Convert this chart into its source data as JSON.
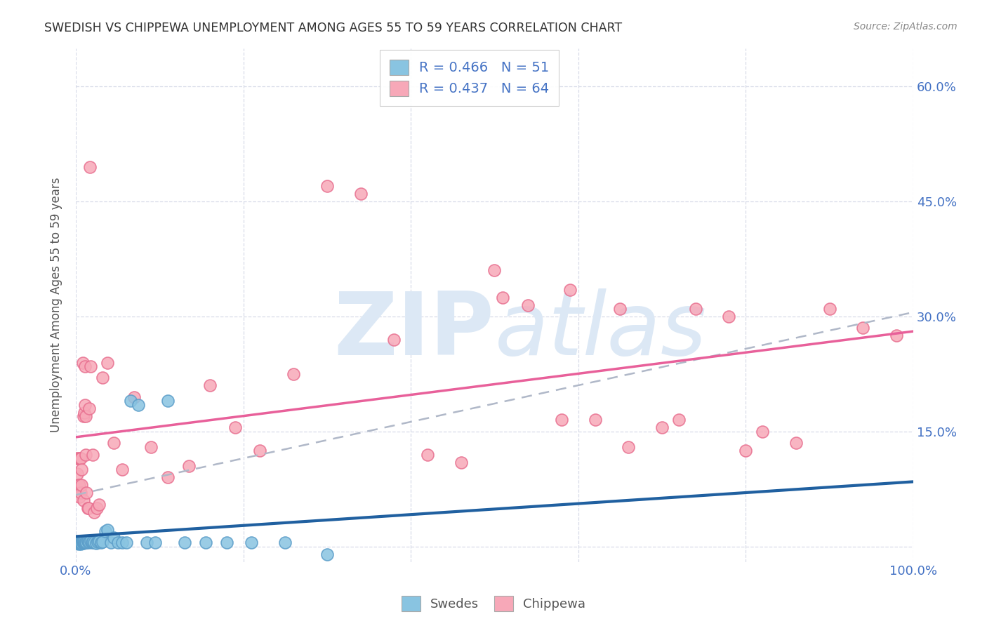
{
  "title": "SWEDISH VS CHIPPEWA UNEMPLOYMENT AMONG AGES 55 TO 59 YEARS CORRELATION CHART",
  "source": "Source: ZipAtlas.com",
  "ylabel": "Unemployment Among Ages 55 to 59 years",
  "xlim": [
    0.0,
    1.0
  ],
  "ylim": [
    -0.02,
    0.65
  ],
  "yticks": [
    0.0,
    0.15,
    0.3,
    0.45,
    0.6
  ],
  "yticklabels_right": [
    "",
    "15.0%",
    "30.0%",
    "45.0%",
    "60.0%"
  ],
  "xtick_positions": [
    0.0,
    0.2,
    0.4,
    0.6,
    0.8,
    1.0
  ],
  "xticklabels": [
    "0.0%",
    "",
    "",
    "",
    "",
    "100.0%"
  ],
  "swedes_color": "#89c4e1",
  "swedes_edge": "#5b9dc9",
  "chippewa_color": "#f7a8b8",
  "chippewa_edge": "#e87090",
  "swedes_line_color": "#2060a0",
  "chippewa_line_color": "#e8609a",
  "dashed_line_color": "#b0b8c8",
  "swedes_R": 0.466,
  "swedes_N": 51,
  "chippewa_R": 0.437,
  "chippewa_N": 64,
  "swedes_x": [
    0.001,
    0.002,
    0.003,
    0.003,
    0.004,
    0.004,
    0.005,
    0.005,
    0.006,
    0.006,
    0.007,
    0.007,
    0.008,
    0.008,
    0.009,
    0.009,
    0.01,
    0.01,
    0.011,
    0.012,
    0.013,
    0.014,
    0.015,
    0.016,
    0.018,
    0.019,
    0.02,
    0.022,
    0.024,
    0.026,
    0.028,
    0.03,
    0.032,
    0.035,
    0.038,
    0.042,
    0.045,
    0.05,
    0.055,
    0.06,
    0.065,
    0.075,
    0.085,
    0.095,
    0.11,
    0.13,
    0.155,
    0.18,
    0.21,
    0.25,
    0.3
  ],
  "swedes_y": [
    0.005,
    0.004,
    0.006,
    0.003,
    0.005,
    0.007,
    0.004,
    0.006,
    0.003,
    0.005,
    0.006,
    0.004,
    0.005,
    0.007,
    0.004,
    0.006,
    0.005,
    0.007,
    0.005,
    0.006,
    0.005,
    0.007,
    0.005,
    0.006,
    0.007,
    0.005,
    0.006,
    0.005,
    0.004,
    0.006,
    0.007,
    0.005,
    0.006,
    0.02,
    0.022,
    0.005,
    0.012,
    0.005,
    0.005,
    0.005,
    0.19,
    0.185,
    0.005,
    0.005,
    0.19,
    0.005,
    0.005,
    0.005,
    0.005,
    0.005,
    -0.01
  ],
  "chippewa_x": [
    0.001,
    0.002,
    0.003,
    0.003,
    0.004,
    0.004,
    0.005,
    0.006,
    0.006,
    0.007,
    0.007,
    0.008,
    0.009,
    0.009,
    0.01,
    0.011,
    0.011,
    0.012,
    0.012,
    0.013,
    0.014,
    0.015,
    0.016,
    0.017,
    0.018,
    0.02,
    0.022,
    0.025,
    0.028,
    0.032,
    0.038,
    0.045,
    0.055,
    0.07,
    0.09,
    0.11,
    0.135,
    0.16,
    0.19,
    0.22,
    0.26,
    0.3,
    0.34,
    0.38,
    0.42,
    0.46,
    0.5,
    0.54,
    0.58,
    0.62,
    0.66,
    0.7,
    0.74,
    0.78,
    0.82,
    0.86,
    0.9,
    0.94,
    0.98,
    0.59,
    0.65,
    0.51,
    0.72,
    0.8
  ],
  "chippewa_y": [
    0.115,
    0.095,
    0.115,
    0.08,
    0.065,
    0.08,
    0.115,
    0.07,
    0.115,
    0.1,
    0.08,
    0.24,
    0.17,
    0.06,
    0.175,
    0.235,
    0.185,
    0.12,
    0.17,
    0.07,
    0.05,
    0.05,
    0.18,
    0.495,
    0.235,
    0.12,
    0.045,
    0.05,
    0.055,
    0.22,
    0.24,
    0.135,
    0.1,
    0.195,
    0.13,
    0.09,
    0.105,
    0.21,
    0.155,
    0.125,
    0.225,
    0.47,
    0.46,
    0.27,
    0.12,
    0.11,
    0.36,
    0.315,
    0.165,
    0.165,
    0.13,
    0.155,
    0.31,
    0.3,
    0.15,
    0.135,
    0.31,
    0.285,
    0.275,
    0.335,
    0.31,
    0.325,
    0.165,
    0.125
  ],
  "background_color": "#ffffff",
  "grid_color": "#d8dce8",
  "title_color": "#333333",
  "axis_label_color": "#555555",
  "tick_color": "#4472c4",
  "watermark_zip": "ZIP",
  "watermark_atlas": "atlas",
  "watermark_color": "#dce8f5"
}
